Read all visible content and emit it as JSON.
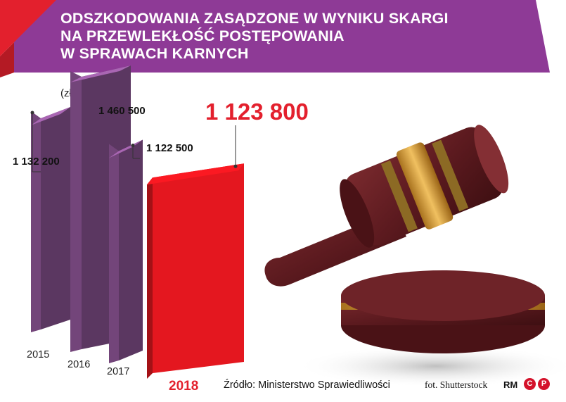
{
  "title_lines": [
    "ODSZKODOWANIA ZASĄDZONE W WYNIKU SKARGI",
    "NA PRZEWLEKŁOŚĆ POSTĘPOWANIA",
    "W SPRAWACH KARNYCH"
  ],
  "unit": "(zł)",
  "source": "Źródło: Ministerstwo Sprawiedliwości",
  "photo_credit": "fot. Shutterstock",
  "agency": "RM",
  "license_icons": [
    "C",
    "P"
  ],
  "colors": {
    "banner": "#8e3a96",
    "accent_red": "#e3202d",
    "bar_purple": "#93599c",
    "bar_red": "#e4171f",
    "highlight_text": "#e3202d"
  },
  "chart_data": {
    "type": "bar",
    "categories": [
      "2015",
      "2016",
      "2017",
      "2018"
    ],
    "values": [
      1132200,
      1460500,
      1122500,
      1123800
    ],
    "value_labels": [
      "1 132 200",
      "1 460 500",
      "1 122 500",
      "1 123 800"
    ],
    "highlight_index": 3,
    "ylabel": "(zł)",
    "ylim": [
      0,
      1600000
    ],
    "grid": false,
    "legend": "none"
  }
}
